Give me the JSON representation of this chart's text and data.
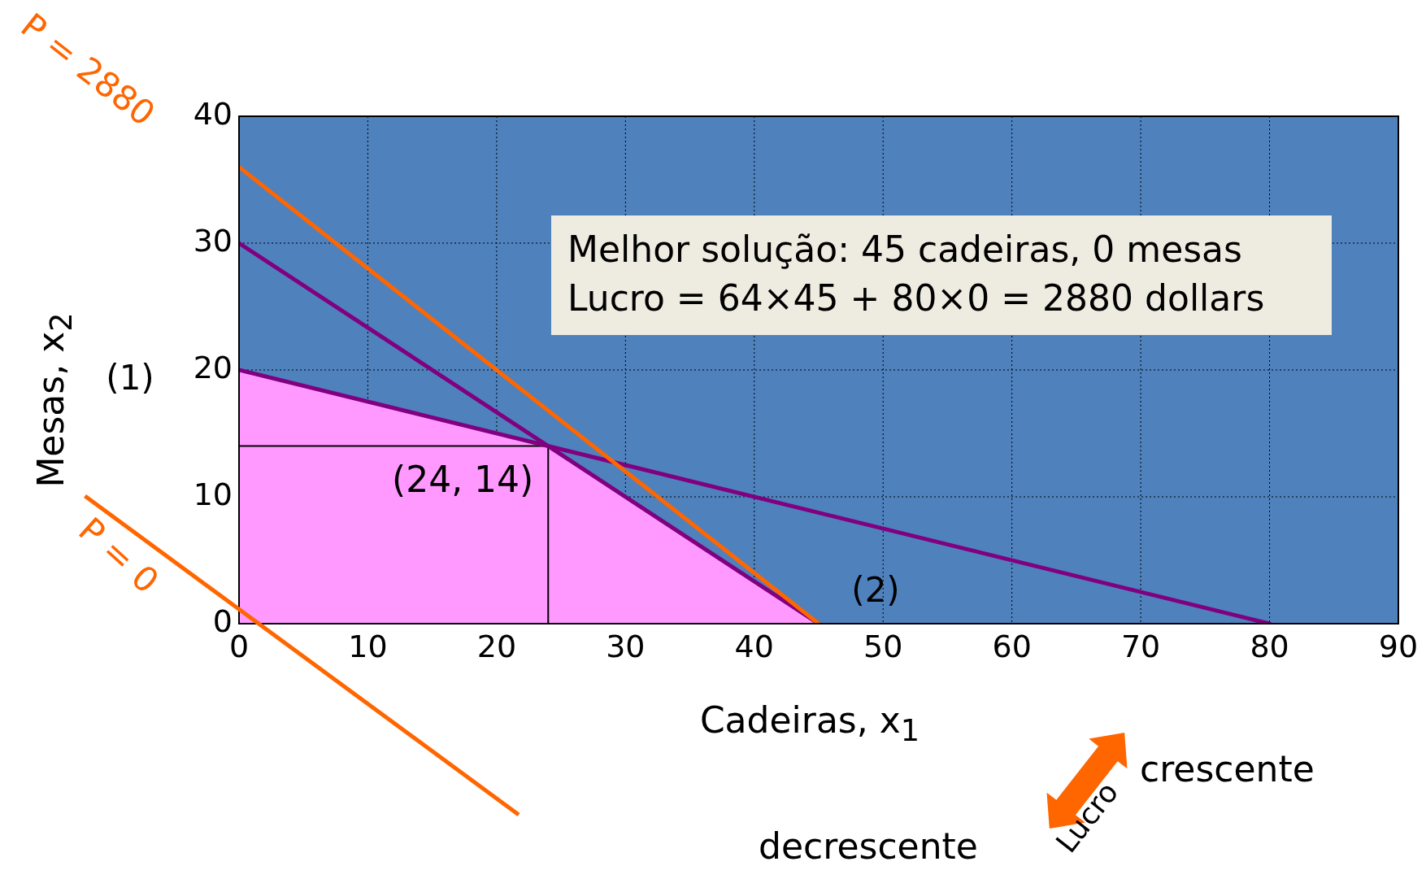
{
  "chart_data": {
    "type": "line",
    "xlabel": "Cadeiras, x$_{1}$",
    "ylabel": "Mesas, x$_{2}$",
    "xlim": [
      0,
      90
    ],
    "ylim": [
      0,
      40
    ],
    "xticks": [
      0,
      10,
      20,
      30,
      40,
      50,
      60,
      70,
      80,
      90
    ],
    "yticks": [
      0,
      10,
      20,
      30,
      40
    ],
    "grid": true,
    "marker": "none",
    "series": [
      {
        "type": "area",
        "color": "#ff99ff",
        "x": [
          0,
          24,
          45
        ],
        "values": [
          20,
          14,
          0
        ]
      },
      {
        "type": "line",
        "color": "#000000",
        "x": [
          0,
          24,
          24
        ],
        "values": [
          14,
          14,
          0
        ]
      },
      {
        "type": "line",
        "name": "(1)",
        "color": "#800080",
        "x": [
          0,
          80
        ],
        "values": [
          20,
          0
        ]
      },
      {
        "type": "line",
        "name": "(2)",
        "color": "#800080",
        "x": [
          0,
          45
        ],
        "values": [
          30,
          0
        ]
      },
      {
        "type": "line",
        "name": "P = 2880",
        "color": "#ff6600",
        "x": [
          0,
          45
        ],
        "values": [
          36,
          0
        ]
      }
    ],
    "annotations": [
      "Melhor solução: 45 cadeiras, 0 mesas",
      "Lucro = 64×45 + 80×0 = 2880 dollars",
      {
        "text": "(24, 14)",
        "x": 24,
        "y": 14
      },
      "P = 0",
      "Lucro",
      "crescente",
      "decrescente"
    ]
  }
}
